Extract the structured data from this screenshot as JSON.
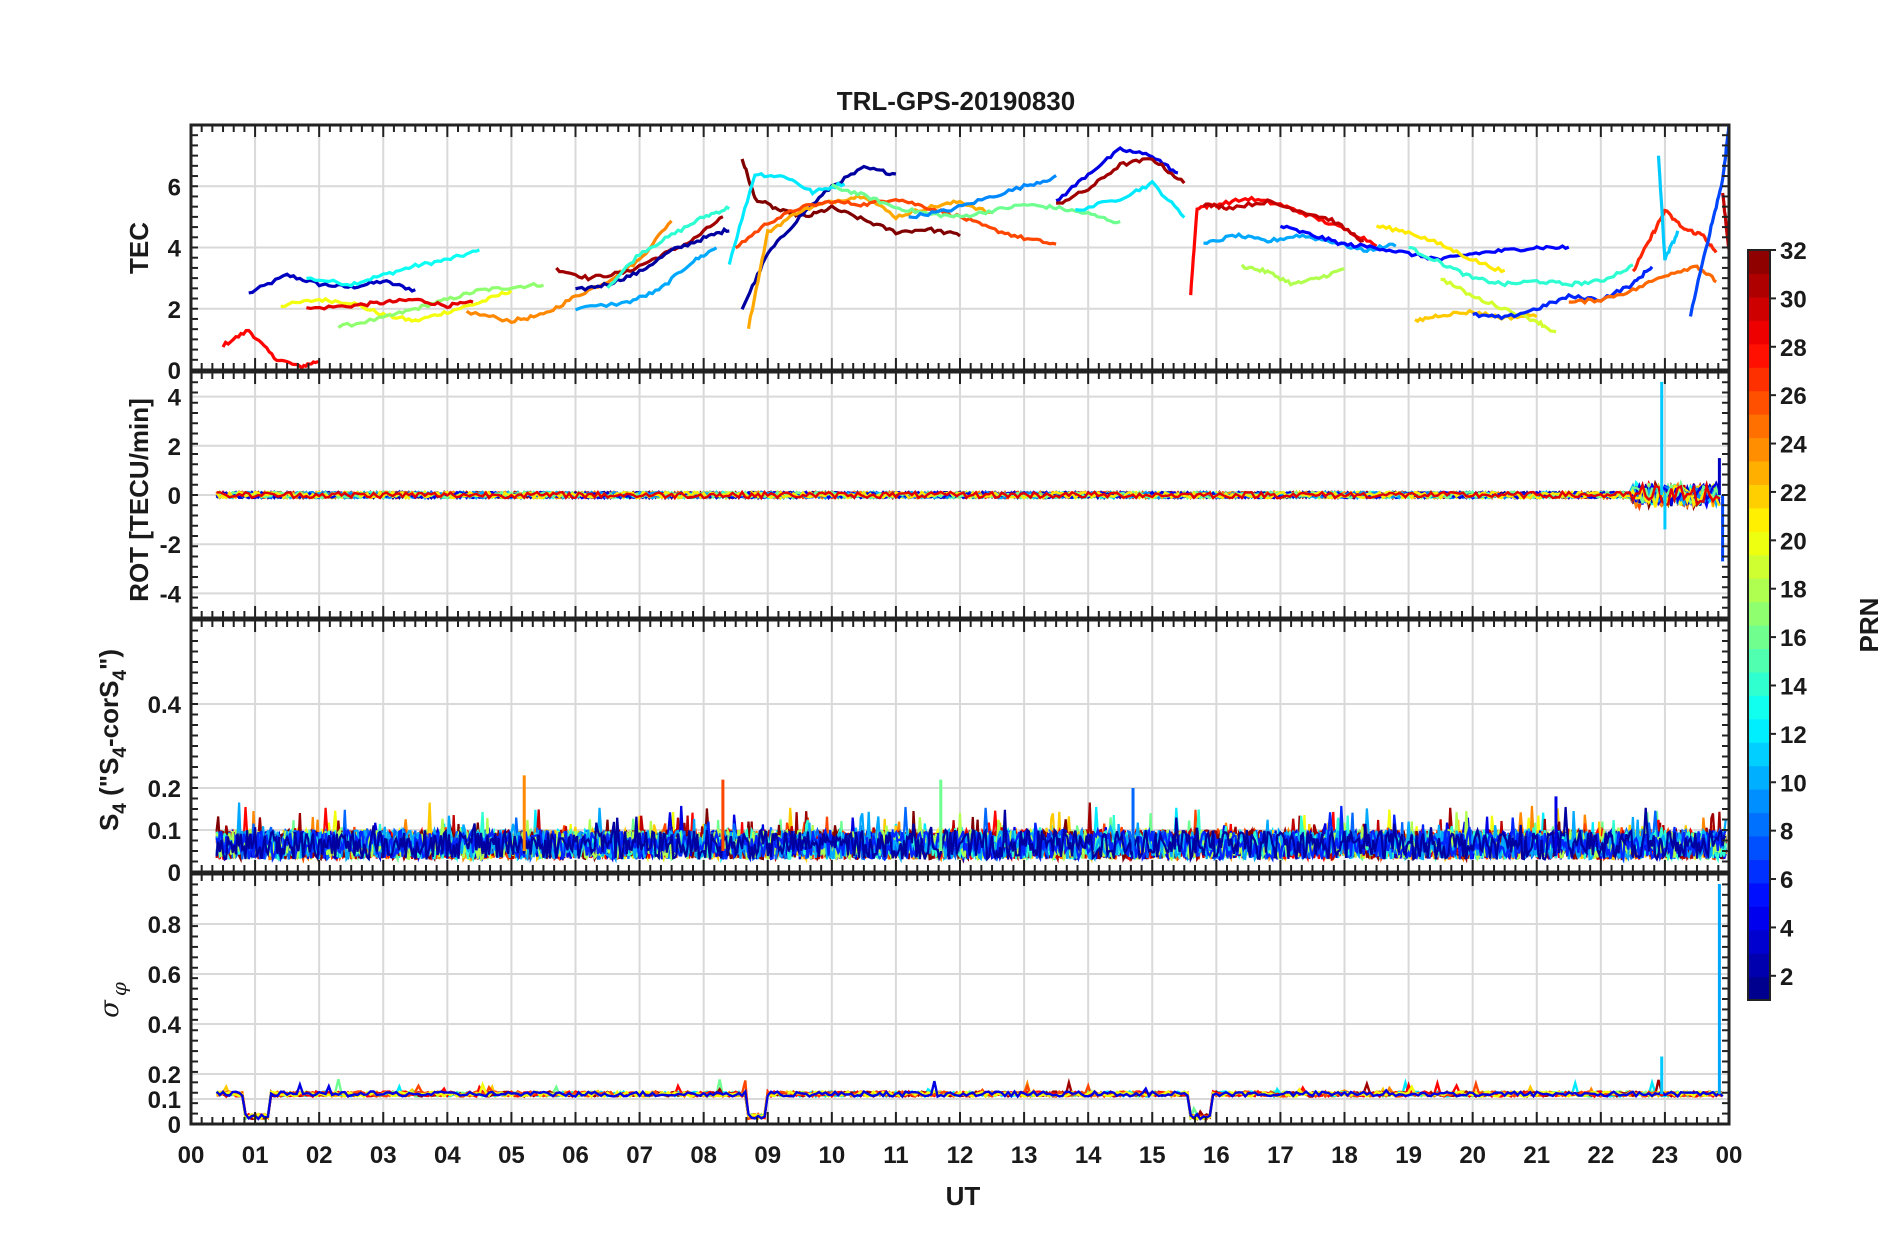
{
  "title": "TRL-GPS-20190830",
  "xlabel": "UT",
  "x_ticks": [
    "00",
    "01",
    "02",
    "03",
    "04",
    "05",
    "06",
    "07",
    "08",
    "09",
    "10",
    "11",
    "12",
    "13",
    "14",
    "15",
    "16",
    "17",
    "18",
    "19",
    "20",
    "21",
    "22",
    "23",
    "00"
  ],
  "colorbar": {
    "label": "PRN",
    "range": [
      1,
      32
    ],
    "ticks": [
      "2",
      "4",
      "6",
      "8",
      "10",
      "12",
      "14",
      "16",
      "18",
      "20",
      "22",
      "24",
      "26",
      "28",
      "30",
      "32"
    ],
    "colormap": "jet"
  },
  "chart_data": [
    {
      "type": "line",
      "ylabel": "TEC",
      "ylim": [
        0,
        8
      ],
      "yticks": [
        "0",
        "2",
        "4",
        "6"
      ],
      "grid": true,
      "x_unit": "hours UT",
      "series": [
        {
          "prn": 3,
          "x": [
            0.9,
            1.5,
            2.0,
            2.5,
            3.0,
            3.5
          ],
          "y": [
            2.5,
            3.1,
            2.8,
            2.7,
            2.9,
            2.6
          ]
        },
        {
          "prn": 13,
          "x": [
            1.8,
            2.5,
            3.0,
            3.5,
            4.0,
            4.5
          ],
          "y": [
            3.0,
            2.8,
            3.1,
            3.4,
            3.6,
            3.9
          ]
        },
        {
          "prn": 28,
          "x": [
            0.5,
            0.9,
            1.3,
            1.7,
            2.0
          ],
          "y": [
            0.8,
            1.3,
            0.4,
            0.1,
            0.3
          ]
        },
        {
          "prn": 20,
          "x": [
            1.4,
            2.0,
            2.5,
            3.0,
            3.5,
            4.0,
            4.5,
            5.0
          ],
          "y": [
            2.1,
            2.3,
            2.2,
            1.8,
            1.6,
            1.9,
            2.2,
            2.6
          ]
        },
        {
          "prn": 17,
          "x": [
            2.3,
            3.0,
            3.5,
            4.0,
            4.5,
            5.0,
            5.5
          ],
          "y": [
            1.4,
            1.7,
            2.0,
            2.3,
            2.6,
            2.7,
            2.8
          ]
        },
        {
          "prn": 29,
          "x": [
            1.8,
            2.5,
            3.0,
            3.5,
            4.0,
            4.4
          ],
          "y": [
            2.0,
            2.1,
            2.2,
            2.3,
            2.1,
            2.2
          ]
        },
        {
          "prn": 24,
          "x": [
            4.3,
            5.0,
            5.5,
            6.0,
            6.5,
            7.0,
            7.5
          ],
          "y": [
            1.9,
            1.6,
            1.8,
            2.4,
            2.9,
            3.6,
            4.9
          ]
        },
        {
          "prn": 31,
          "x": [
            5.7,
            6.2,
            6.8,
            7.3,
            7.8,
            8.3
          ],
          "y": [
            3.3,
            3.0,
            3.2,
            3.7,
            4.2,
            5.0
          ]
        },
        {
          "prn": 2,
          "x": [
            6.0,
            6.5,
            7.0,
            7.5,
            8.0,
            8.4
          ],
          "y": [
            2.6,
            2.8,
            3.2,
            3.9,
            4.3,
            4.6
          ]
        },
        {
          "prn": 14,
          "x": [
            6.5,
            7.0,
            7.5,
            8.0,
            8.4
          ],
          "y": [
            2.7,
            3.8,
            4.4,
            5.0,
            5.3
          ]
        },
        {
          "prn": 10,
          "x": [
            6.0,
            6.8,
            7.3,
            7.8,
            8.2
          ],
          "y": [
            2.0,
            2.2,
            2.6,
            3.5,
            4.0
          ]
        },
        {
          "prn": 32,
          "x": [
            8.6,
            8.8,
            9.2,
            9.6,
            10.0,
            10.5,
            11.0,
            11.5,
            12.0
          ],
          "y": [
            6.9,
            5.6,
            5.2,
            5.0,
            5.3,
            4.9,
            4.5,
            4.6,
            4.4
          ]
        },
        {
          "prn": 2,
          "x": [
            8.6,
            9.0,
            9.5,
            10.0,
            10.5,
            11.0
          ],
          "y": [
            2.0,
            3.8,
            5.0,
            6.0,
            6.6,
            6.4
          ]
        },
        {
          "prn": 12,
          "x": [
            8.4,
            8.8,
            9.3,
            9.7,
            10.2
          ],
          "y": [
            3.5,
            6.4,
            6.3,
            5.8,
            6.1
          ]
        },
        {
          "prn": 23,
          "x": [
            8.7,
            9.0,
            9.5,
            10.0,
            10.5,
            11.0,
            11.5,
            12.0,
            12.5
          ],
          "y": [
            1.4,
            4.5,
            5.2,
            5.5,
            5.7,
            5.0,
            5.3,
            5.5,
            5.1
          ]
        },
        {
          "prn": 26,
          "x": [
            8.5,
            9.0,
            9.5,
            10.0,
            10.5,
            11.0,
            11.5,
            12.0,
            12.5,
            13.0,
            13.5
          ],
          "y": [
            4.0,
            4.8,
            5.3,
            5.5,
            5.4,
            5.6,
            5.3,
            5.0,
            4.6,
            4.3,
            4.1
          ]
        },
        {
          "prn": 16,
          "x": [
            10.0,
            10.5,
            11.0,
            11.5,
            12.0,
            12.5,
            13.0,
            13.5,
            14.0,
            14.5
          ],
          "y": [
            6.0,
            5.7,
            5.3,
            5.1,
            5.0,
            5.2,
            5.4,
            5.3,
            5.1,
            4.8
          ]
        },
        {
          "prn": 9,
          "x": [
            11.2,
            11.8,
            12.4,
            13.0,
            13.5
          ],
          "y": [
            5.0,
            5.2,
            5.6,
            6.0,
            6.3
          ]
        },
        {
          "prn": 4,
          "x": [
            13.5,
            14.0,
            14.5,
            15.0,
            15.4
          ],
          "y": [
            5.5,
            6.4,
            7.2,
            7.0,
            6.4
          ]
        },
        {
          "prn": 31,
          "x": [
            13.5,
            14.0,
            14.5,
            15.0,
            15.5
          ],
          "y": [
            5.4,
            5.9,
            6.7,
            6.9,
            6.1
          ]
        },
        {
          "prn": 12,
          "x": [
            13.8,
            14.5,
            15.0,
            15.5
          ],
          "y": [
            5.2,
            5.6,
            6.1,
            5.0
          ]
        },
        {
          "prn": 28,
          "x": [
            15.6,
            15.7,
            16.0,
            16.5,
            17.0,
            17.5,
            18.0,
            18.5
          ],
          "y": [
            2.5,
            5.3,
            5.4,
            5.6,
            5.4,
            5.0,
            4.6,
            4.1
          ]
        },
        {
          "prn": 30,
          "x": [
            15.8,
            16.2,
            16.8,
            17.3,
            17.8,
            18.3
          ],
          "y": [
            5.4,
            5.3,
            5.5,
            5.2,
            4.9,
            4.2
          ]
        },
        {
          "prn": 10,
          "x": [
            15.8,
            16.3,
            16.8,
            17.3,
            17.8,
            18.3,
            18.8
          ],
          "y": [
            4.1,
            4.4,
            4.2,
            4.4,
            4.2,
            3.9,
            4.1
          ]
        },
        {
          "prn": 18,
          "x": [
            16.4,
            16.8,
            17.2,
            17.6,
            18.0
          ],
          "y": [
            3.4,
            3.2,
            2.8,
            3.0,
            3.3
          ]
        },
        {
          "prn": 5,
          "x": [
            17.0,
            17.5,
            18.0,
            18.5,
            19.0,
            19.5,
            20.0,
            20.5,
            21.0,
            21.5
          ],
          "y": [
            4.7,
            4.4,
            4.1,
            4.0,
            3.8,
            3.6,
            3.8,
            3.9,
            4.0,
            4.0
          ]
        },
        {
          "prn": 21,
          "x": [
            18.5,
            19.0,
            19.5,
            20.0,
            20.5
          ],
          "y": [
            4.7,
            4.5,
            4.1,
            3.6,
            3.2
          ]
        },
        {
          "prn": 22,
          "x": [
            19.1,
            19.5,
            20.0,
            20.5,
            21.0
          ],
          "y": [
            1.6,
            1.8,
            1.9,
            1.7,
            1.8
          ]
        },
        {
          "prn": 14,
          "x": [
            19.0,
            19.5,
            20.0,
            20.5,
            21.0,
            21.5,
            22.0,
            22.5
          ],
          "y": [
            4.0,
            3.5,
            3.0,
            2.8,
            2.9,
            2.8,
            2.9,
            3.4
          ]
        },
        {
          "prn": 19,
          "x": [
            19.5,
            20.0,
            20.5,
            21.0,
            21.3
          ],
          "y": [
            3.0,
            2.4,
            2.0,
            1.6,
            1.2
          ]
        },
        {
          "prn": 6,
          "x": [
            20.0,
            20.5,
            21.0,
            21.5,
            22.0,
            22.5,
            22.8
          ],
          "y": [
            1.8,
            1.7,
            2.0,
            2.4,
            2.3,
            2.8,
            3.4
          ]
        },
        {
          "prn": 25,
          "x": [
            21.5,
            22.0,
            22.5,
            23.0,
            23.5,
            23.8
          ],
          "y": [
            2.2,
            2.3,
            2.6,
            3.1,
            3.4,
            2.9
          ]
        },
        {
          "prn": 27,
          "x": [
            22.5,
            22.8,
            23.0,
            23.3,
            23.6,
            23.8
          ],
          "y": [
            3.2,
            4.4,
            5.2,
            4.6,
            4.4,
            3.8
          ]
        },
        {
          "prn": 11,
          "x": [
            22.9,
            23.0,
            23.2
          ],
          "y": [
            7.0,
            3.6,
            4.5
          ]
        },
        {
          "prn": 7,
          "x": [
            23.4,
            23.7,
            23.9,
            24.0
          ],
          "y": [
            1.8,
            4.5,
            6.2,
            8.0
          ]
        },
        {
          "prn": 30,
          "x": [
            23.9,
            24.0
          ],
          "y": [
            5.8,
            3.9
          ]
        }
      ]
    },
    {
      "type": "line",
      "ylabel": "ROT [TECU/min]",
      "ylim": [
        -5,
        5
      ],
      "yticks": [
        "-4",
        "-2",
        "0",
        "2",
        "4"
      ],
      "grid": true,
      "note_values": "all satellites near 0 TECU/min with spikes near 23 UT",
      "spikes": [
        {
          "prn": 11,
          "x": 22.95,
          "y": 4.6
        },
        {
          "prn": 11,
          "x": 23.0,
          "y": -1.4
        },
        {
          "prn": 7,
          "x": 23.9,
          "y": -2.7
        },
        {
          "prn": 3,
          "x": 23.85,
          "y": 1.5
        }
      ]
    },
    {
      "type": "line",
      "ylabel": "S4 (\"S4-corS4\")",
      "ylabel_parts": {
        "base": "S",
        "sub": "4",
        "paren_open": " (\"S",
        "paren_sub1": "4",
        "middle": "-corS",
        "paren_sub2": "4",
        "paren_close": "\")"
      },
      "ylim": [
        0,
        0.6
      ],
      "yticks": [
        "0",
        "0.1",
        "0.2",
        "0.4"
      ],
      "grid": true,
      "note_values": "dense noise 0 to 0.15 with peaks",
      "peaks": [
        {
          "prn": 24,
          "x": 5.2,
          "y": 0.23
        },
        {
          "prn": 26,
          "x": 8.3,
          "y": 0.22
        },
        {
          "prn": 16,
          "x": 11.7,
          "y": 0.22
        },
        {
          "prn": 8,
          "x": 14.7,
          "y": 0.2
        },
        {
          "prn": 4,
          "x": 21.3,
          "y": 0.18
        }
      ]
    },
    {
      "type": "line",
      "ylabel": "σ φ",
      "ylabel_parts": {
        "base": "σ",
        "sub": "φ"
      },
      "ylim": [
        0,
        1.0
      ],
      "yticks": [
        "0",
        "0.1",
        "0.2",
        "0.4",
        "0.6",
        "0.8"
      ],
      "grid": true,
      "baseline_value": 0.12,
      "dips": [
        {
          "x": [
            0.85,
            1.25
          ],
          "y": 0.03
        },
        {
          "x": [
            8.65,
            8.95
          ],
          "y": 0.03
        },
        {
          "x": [
            15.6,
            15.95
          ],
          "y": 0.03
        }
      ],
      "peaks": [
        {
          "prn": 11,
          "x": 22.95,
          "y": 0.27
        },
        {
          "prn": 10,
          "x": 23.85,
          "y": 0.96
        }
      ]
    }
  ]
}
